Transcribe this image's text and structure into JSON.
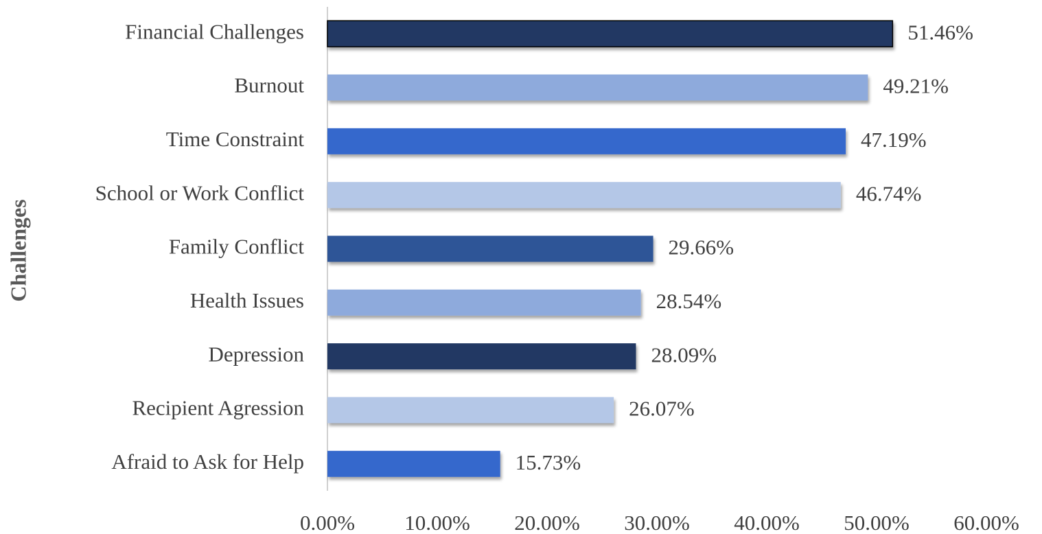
{
  "chart_data": {
    "type": "barh",
    "y_axis_label": "Challenges",
    "categories": [
      "Financial Challenges",
      "Burnout",
      "Time Constraint",
      "School or Work Conflict",
      "Family Conflict",
      "Health Issues",
      "Depression",
      "Recipient Agression",
      "Afraid to Ask for Help"
    ],
    "values": [
      51.46,
      49.21,
      47.19,
      46.74,
      29.66,
      28.54,
      28.09,
      26.07,
      15.73
    ],
    "value_labels": [
      "51.46%",
      "49.21%",
      "47.19%",
      "46.74%",
      "29.66%",
      "28.54%",
      "28.09%",
      "26.07%",
      "15.73%"
    ],
    "colors": [
      "#203864",
      "#8eaadc",
      "#3567cc",
      "#b4c7e7",
      "#2f5597",
      "#8eaadc",
      "#203864",
      "#b4c7e7",
      "#3567cc"
    ],
    "xlim": [
      0,
      60
    ],
    "xticks": [
      {
        "value": 0,
        "label": "0.00%"
      },
      {
        "value": 10,
        "label": "10.00%"
      },
      {
        "value": 20,
        "label": "20.00%"
      },
      {
        "value": 30,
        "label": "30.00%"
      },
      {
        "value": 40,
        "label": "40.00%"
      },
      {
        "value": 50,
        "label": "50.00%"
      },
      {
        "value": 60,
        "label": "60.00%"
      }
    ],
    "grid": false
  }
}
